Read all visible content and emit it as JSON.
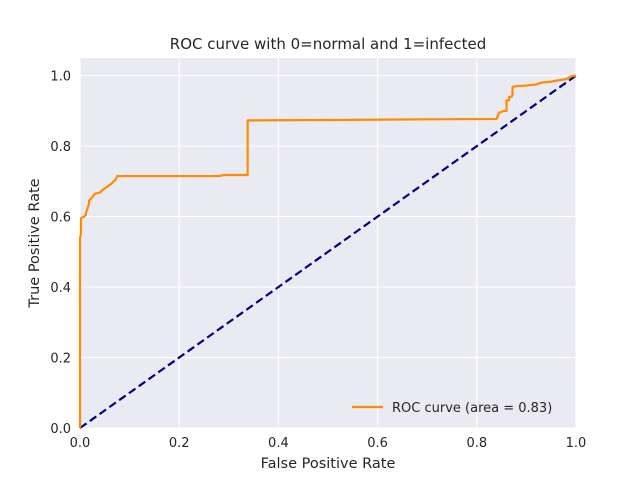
{
  "chart_data": {
    "type": "line",
    "title": "ROC curve with 0=normal and 1=infected",
    "xlabel": "False Positive Rate",
    "ylabel": "True Positive Rate",
    "xlim": [
      0.0,
      1.0
    ],
    "ylim": [
      0.0,
      1.05
    ],
    "xticks": [
      0.0,
      0.2,
      0.4,
      0.6,
      0.8,
      1.0
    ],
    "xtick_labels": [
      "0.0",
      "0.2",
      "0.4",
      "0.6",
      "0.8",
      "1.0"
    ],
    "yticks": [
      0.0,
      0.2,
      0.4,
      0.6,
      0.8,
      1.0
    ],
    "ytick_labels": [
      "0.0",
      "0.2",
      "0.4",
      "0.6",
      "0.8",
      "1.0"
    ],
    "grid": true,
    "legend_position": "lower-right",
    "colors": {
      "plot_background": "#eaeaf2",
      "grid": "#ffffff",
      "roc": "#ff8c00",
      "diagonal": "#000080"
    },
    "series": [
      {
        "name": "ROC curve (area = 0.83)",
        "style": "solid",
        "color": "#ff8c00",
        "x": [
          0.0,
          0.0,
          0.002,
          0.002,
          0.005,
          0.008,
          0.012,
          0.012,
          0.018,
          0.018,
          0.025,
          0.03,
          0.04,
          0.045,
          0.055,
          0.06,
          0.065,
          0.068,
          0.072,
          0.075,
          0.1,
          0.2,
          0.28,
          0.29,
          0.31,
          0.338,
          0.338,
          0.34,
          0.5,
          0.7,
          0.84,
          0.845,
          0.855,
          0.86,
          0.86,
          0.865,
          0.865,
          0.87,
          0.872,
          0.872,
          0.88,
          0.9,
          0.92,
          0.93,
          0.95,
          0.97,
          0.98,
          0.99,
          1.0
        ],
        "y": [
          0.0,
          0.54,
          0.55,
          0.595,
          0.598,
          0.6,
          0.605,
          0.61,
          0.635,
          0.645,
          0.655,
          0.665,
          0.668,
          0.675,
          0.685,
          0.69,
          0.695,
          0.7,
          0.705,
          0.715,
          0.715,
          0.715,
          0.715,
          0.718,
          0.718,
          0.718,
          0.873,
          0.873,
          0.874,
          0.876,
          0.877,
          0.895,
          0.9,
          0.9,
          0.93,
          0.93,
          0.94,
          0.94,
          0.945,
          0.968,
          0.97,
          0.972,
          0.975,
          0.98,
          0.983,
          0.988,
          0.99,
          0.998,
          1.0
        ]
      },
      {
        "name": "",
        "style": "dashed",
        "color": "#000080",
        "x": [
          0.0,
          1.0
        ],
        "y": [
          0.0,
          1.0
        ]
      }
    ]
  }
}
